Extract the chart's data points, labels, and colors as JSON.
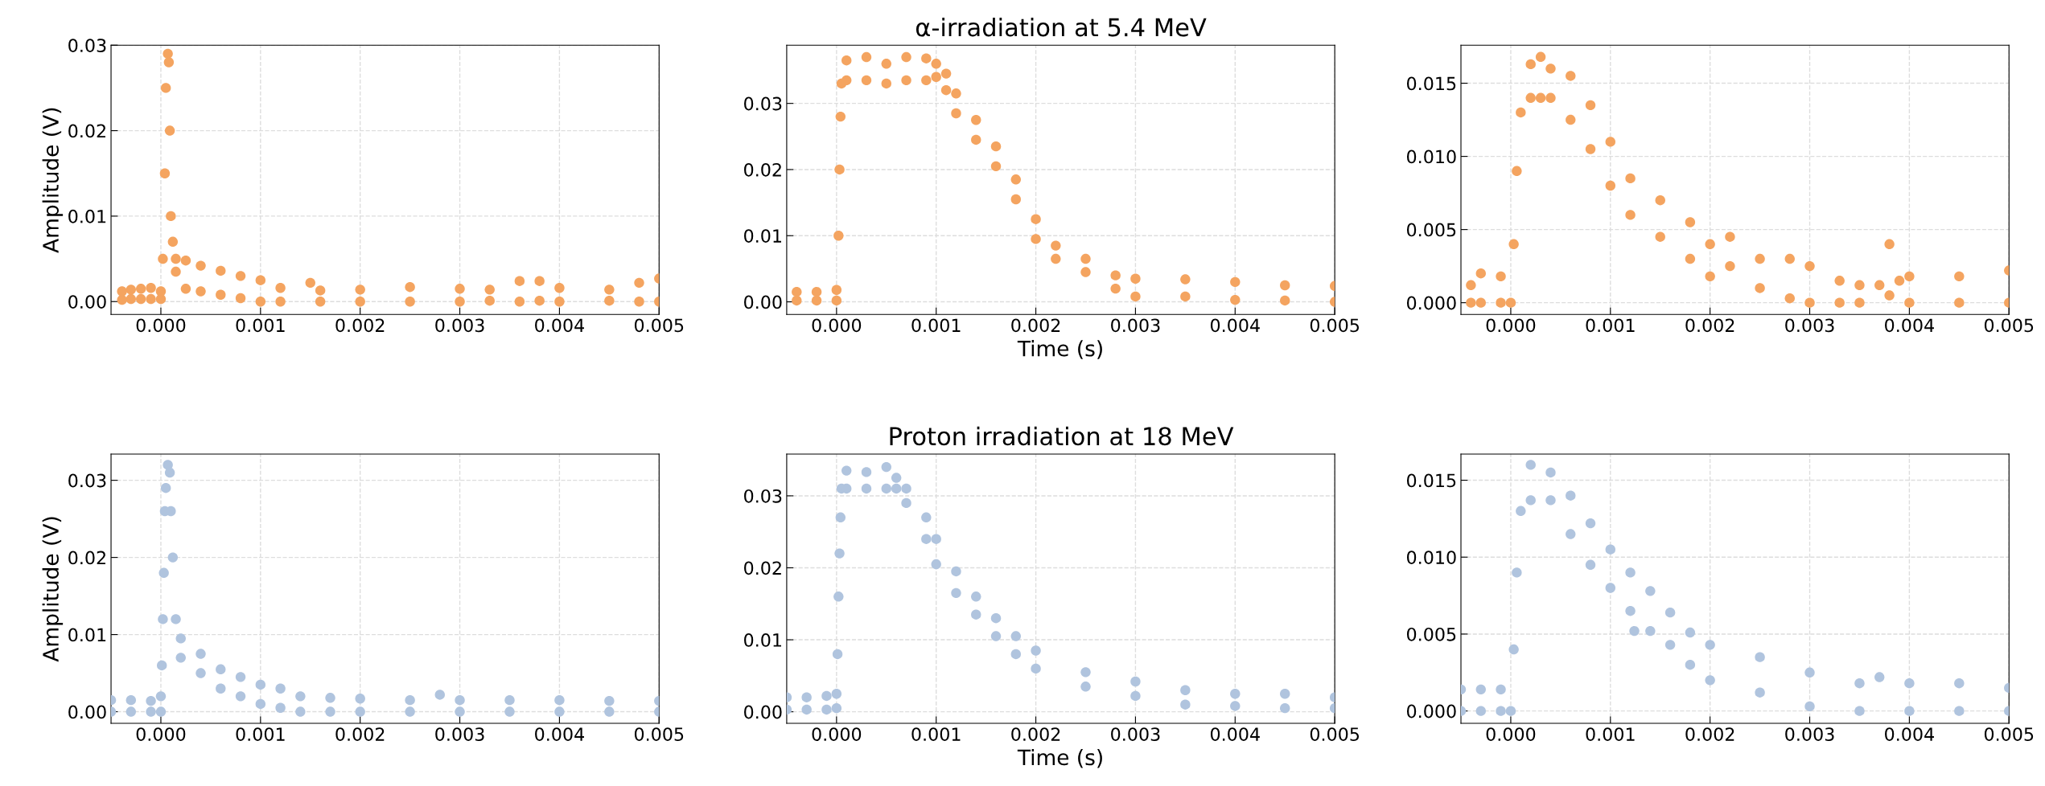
{
  "chart_data": [
    {
      "type": "scatter",
      "ylabel": "Amplitude (V)",
      "color": "#f4a460",
      "marker": "circle",
      "grid": true,
      "x": [
        -0.00039,
        -0.00039,
        -0.0003,
        -0.0003,
        -0.0002,
        -0.0002,
        -0.0001,
        -0.0001,
        0,
        0,
        2e-05,
        4e-05,
        5e-05,
        7e-05,
        8e-05,
        9e-05,
        0.0001,
        0.00012,
        0.00015,
        0.00015,
        0.00025,
        0.00025,
        0.0004,
        0.0004,
        0.0006,
        0.0006,
        0.0008,
        0.0008,
        0.001,
        0.001,
        0.0012,
        0.0012,
        0.0015,
        0.0016,
        0.0016,
        0.002,
        0.002,
        0.0025,
        0.0025,
        0.003,
        0.003,
        0.0033,
        0.0033,
        0.0036,
        0.0036,
        0.0038,
        0.0038,
        0.004,
        0.004,
        0.0045,
        0.0045,
        0.0048,
        0.0048,
        0.005,
        0.005
      ],
      "values": [
        0.0002,
        0.0012,
        0.0003,
        0.0014,
        0.0003,
        0.0015,
        0.0003,
        0.0016,
        0.0003,
        0.0012,
        0.005,
        0.015,
        0.025,
        0.029,
        0.028,
        0.02,
        0.01,
        0.007,
        0.0035,
        0.005,
        0.0015,
        0.0048,
        0.0012,
        0.0042,
        0.0008,
        0.0036,
        0.0004,
        0.003,
        0.0,
        0.0025,
        0.0,
        0.0016,
        0.0022,
        0.0,
        0.0013,
        0.0,
        0.0014,
        0.0,
        0.0017,
        0.0,
        0.0015,
        0.0001,
        0.0014,
        0.0,
        0.0024,
        0.0001,
        0.0024,
        0.0,
        0.0016,
        0.0001,
        0.0014,
        0.0,
        0.0022,
        0.0,
        0.0027
      ],
      "xlim": [
        -0.0005,
        0.005
      ],
      "ylim": [
        -0.0015,
        0.03
      ],
      "xticks": [
        {
          "value": 0,
          "label": "0.000"
        },
        {
          "value": 0.001,
          "label": "0.001"
        },
        {
          "value": 0.002,
          "label": "0.002"
        },
        {
          "value": 0.003,
          "label": "0.003"
        },
        {
          "value": 0.004,
          "label": "0.004"
        },
        {
          "value": 0.005,
          "label": "0.005"
        }
      ],
      "yticks": [
        {
          "value": 0,
          "label": "0.00"
        },
        {
          "value": 0.01,
          "label": "0.01"
        },
        {
          "value": 0.02,
          "label": "0.02"
        },
        {
          "value": 0.03,
          "label": "0.03"
        }
      ]
    },
    {
      "type": "scatter",
      "title": "α-irradiation at 5.4 MeV",
      "xlabel": "Time (s)",
      "color": "#f4a460",
      "marker": "circle",
      "grid": true,
      "x": [
        -0.0004,
        -0.0004,
        -0.0002,
        -0.0002,
        0,
        0,
        2e-05,
        3e-05,
        4e-05,
        5e-05,
        0.0001,
        0.0001,
        0.0003,
        0.0003,
        0.0005,
        0.0005,
        0.0007,
        0.0007,
        0.0009,
        0.0009,
        0.001,
        0.001,
        0.0011,
        0.0011,
        0.0012,
        0.0012,
        0.0014,
        0.0014,
        0.0016,
        0.0016,
        0.0018,
        0.0018,
        0.002,
        0.002,
        0.0022,
        0.0022,
        0.0025,
        0.0025,
        0.0028,
        0.0028,
        0.003,
        0.003,
        0.0035,
        0.0035,
        0.004,
        0.004,
        0.0045,
        0.0045,
        0.005,
        0.005
      ],
      "values": [
        0.0002,
        0.0015,
        0.0002,
        0.0015,
        0.0002,
        0.0018,
        0.01,
        0.02,
        0.028,
        0.033,
        0.0335,
        0.0365,
        0.0335,
        0.037,
        0.033,
        0.036,
        0.0335,
        0.037,
        0.0335,
        0.0368,
        0.034,
        0.036,
        0.032,
        0.0345,
        0.0285,
        0.0315,
        0.0245,
        0.0275,
        0.0205,
        0.0235,
        0.0155,
        0.0185,
        0.0095,
        0.0125,
        0.0065,
        0.0085,
        0.0045,
        0.0065,
        0.002,
        0.004,
        0.0008,
        0.0035,
        0.0008,
        0.0034,
        0.0003,
        0.003,
        0.0002,
        0.0025,
        0.0,
        0.0024
      ],
      "xlim": [
        -0.0005,
        0.005
      ],
      "ylim": [
        -0.0019,
        0.0388
      ],
      "xticks": [
        {
          "value": 0,
          "label": "0.000"
        },
        {
          "value": 0.001,
          "label": "0.001"
        },
        {
          "value": 0.002,
          "label": "0.002"
        },
        {
          "value": 0.003,
          "label": "0.003"
        },
        {
          "value": 0.004,
          "label": "0.004"
        },
        {
          "value": 0.005,
          "label": "0.005"
        }
      ],
      "yticks": [
        {
          "value": 0,
          "label": "0.00"
        },
        {
          "value": 0.01,
          "label": "0.01"
        },
        {
          "value": 0.02,
          "label": "0.02"
        },
        {
          "value": 0.03,
          "label": "0.03"
        }
      ]
    },
    {
      "type": "scatter",
      "color": "#f4a460",
      "marker": "circle",
      "grid": true,
      "x": [
        -0.0004,
        -0.0004,
        -0.0003,
        -0.0003,
        -0.0001,
        -0.0001,
        0,
        3e-05,
        6e-05,
        0.0001,
        0.0002,
        0.0002,
        0.0003,
        0.0003,
        0.0004,
        0.0004,
        0.0006,
        0.0006,
        0.0008,
        0.0008,
        0.001,
        0.001,
        0.0012,
        0.0012,
        0.0015,
        0.0015,
        0.0018,
        0.0018,
        0.002,
        0.002,
        0.0022,
        0.0022,
        0.0025,
        0.0025,
        0.0028,
        0.0028,
        0.003,
        0.003,
        0.0033,
        0.0033,
        0.0035,
        0.0035,
        0.0037,
        0.0038,
        0.0038,
        0.0039,
        0.004,
        0.004,
        0.0045,
        0.0045,
        0.005,
        0.005
      ],
      "values": [
        0.0,
        0.0012,
        0.0,
        0.002,
        0.0,
        0.0018,
        0.0,
        0.004,
        0.009,
        0.013,
        0.014,
        0.0163,
        0.014,
        0.0168,
        0.014,
        0.016,
        0.0125,
        0.0155,
        0.0105,
        0.0135,
        0.008,
        0.011,
        0.006,
        0.0085,
        0.0045,
        0.007,
        0.003,
        0.0055,
        0.0018,
        0.004,
        0.0025,
        0.0045,
        0.001,
        0.003,
        0.0003,
        0.003,
        0.0,
        0.0025,
        0.0,
        0.0015,
        0.0,
        0.0012,
        0.0012,
        0.0005,
        0.004,
        0.0015,
        0.0,
        0.0018,
        0.0,
        0.0018,
        0.0,
        0.0022
      ],
      "xlim": [
        -0.0005,
        0.005
      ],
      "ylim": [
        -0.0008,
        0.0176
      ],
      "xticks": [
        {
          "value": 0,
          "label": "0.000"
        },
        {
          "value": 0.001,
          "label": "0.001"
        },
        {
          "value": 0.002,
          "label": "0.002"
        },
        {
          "value": 0.003,
          "label": "0.003"
        },
        {
          "value": 0.004,
          "label": "0.004"
        },
        {
          "value": 0.005,
          "label": "0.005"
        }
      ],
      "yticks": [
        {
          "value": 0,
          "label": "0.000"
        },
        {
          "value": 0.005,
          "label": "0.005"
        },
        {
          "value": 0.01,
          "label": "0.010"
        },
        {
          "value": 0.015,
          "label": "0.015"
        }
      ]
    },
    {
      "type": "scatter",
      "ylabel": "Amplitude (V)",
      "color": "#b0c4de",
      "marker": "circle",
      "grid": true,
      "x": [
        -0.0005,
        -0.0005,
        -0.0003,
        -0.0003,
        -0.0001,
        -0.0001,
        0,
        0,
        1e-05,
        2e-05,
        3e-05,
        4e-05,
        5e-05,
        7e-05,
        9e-05,
        0.0001,
        0.00012,
        0.00015,
        0.0002,
        0.0002,
        0.0004,
        0.0004,
        0.0006,
        0.0006,
        0.0008,
        0.0008,
        0.001,
        0.001,
        0.0012,
        0.0012,
        0.0014,
        0.0014,
        0.0017,
        0.0017,
        0.002,
        0.002,
        0.0025,
        0.0025,
        0.0028,
        0.003,
        0.003,
        0.0035,
        0.0035,
        0.004,
        0.004,
        0.0045,
        0.0045,
        0.005,
        0.005
      ],
      "values": [
        0.0,
        0.0015,
        0.0,
        0.0015,
        0.0,
        0.0014,
        0.0,
        0.002,
        0.006,
        0.012,
        0.018,
        0.026,
        0.029,
        0.032,
        0.031,
        0.026,
        0.02,
        0.012,
        0.007,
        0.0095,
        0.005,
        0.0075,
        0.003,
        0.0055,
        0.002,
        0.0045,
        0.001,
        0.0035,
        0.0005,
        0.003,
        0.0,
        0.002,
        0.0,
        0.0018,
        0.0,
        0.0017,
        0.0,
        0.0015,
        0.0022,
        0.0,
        0.0015,
        0.0,
        0.0015,
        0.0,
        0.0015,
        0.0,
        0.0014,
        0.0,
        0.0014
      ],
      "xlim": [
        -0.0005,
        0.005
      ],
      "ylim": [
        -0.0015,
        0.0334
      ],
      "xticks": [
        {
          "value": 0,
          "label": "0.000"
        },
        {
          "value": 0.001,
          "label": "0.001"
        },
        {
          "value": 0.002,
          "label": "0.002"
        },
        {
          "value": 0.003,
          "label": "0.003"
        },
        {
          "value": 0.004,
          "label": "0.004"
        },
        {
          "value": 0.005,
          "label": "0.005"
        }
      ],
      "yticks": [
        {
          "value": 0,
          "label": "0.00"
        },
        {
          "value": 0.01,
          "label": "0.01"
        },
        {
          "value": 0.02,
          "label": "0.02"
        },
        {
          "value": 0.03,
          "label": "0.03"
        }
      ]
    },
    {
      "type": "scatter",
      "title": "Proton irradiation at 18 MeV",
      "xlabel": "Time (s)",
      "color": "#b0c4de",
      "marker": "circle",
      "grid": true,
      "x": [
        -0.0005,
        -0.0005,
        -0.0003,
        -0.0003,
        -0.0001,
        -0.0001,
        0,
        0,
        1e-05,
        2e-05,
        3e-05,
        4e-05,
        5e-05,
        0.0001,
        0.0001,
        0.0003,
        0.0003,
        0.0005,
        0.0005,
        0.0006,
        0.0006,
        0.0007,
        0.0007,
        0.0009,
        0.0009,
        0.001,
        0.001,
        0.0012,
        0.0012,
        0.0014,
        0.0014,
        0.0016,
        0.0016,
        0.0018,
        0.0018,
        0.002,
        0.002,
        0.0025,
        0.0025,
        0.003,
        0.003,
        0.0035,
        0.0035,
        0.004,
        0.004,
        0.0045,
        0.0045,
        0.005,
        0.005
      ],
      "values": [
        0.0003,
        0.002,
        0.0003,
        0.002,
        0.0003,
        0.0022,
        0.0005,
        0.0025,
        0.008,
        0.016,
        0.022,
        0.027,
        0.031,
        0.031,
        0.0335,
        0.031,
        0.0333,
        0.031,
        0.034,
        0.031,
        0.0325,
        0.029,
        0.031,
        0.024,
        0.027,
        0.0205,
        0.024,
        0.0165,
        0.0195,
        0.0135,
        0.016,
        0.0105,
        0.013,
        0.008,
        0.0105,
        0.006,
        0.0085,
        0.0035,
        0.0055,
        0.0022,
        0.0042,
        0.001,
        0.003,
        0.0008,
        0.0025,
        0.0005,
        0.0025,
        0.0005,
        0.002
      ],
      "xlim": [
        -0.0005,
        0.005
      ],
      "ylim": [
        -0.0016,
        0.0358
      ],
      "xticks": [
        {
          "value": 0,
          "label": "0.000"
        },
        {
          "value": 0.001,
          "label": "0.001"
        },
        {
          "value": 0.002,
          "label": "0.002"
        },
        {
          "value": 0.003,
          "label": "0.003"
        },
        {
          "value": 0.004,
          "label": "0.004"
        },
        {
          "value": 0.005,
          "label": "0.005"
        }
      ],
      "yticks": [
        {
          "value": 0,
          "label": "0.00"
        },
        {
          "value": 0.01,
          "label": "0.01"
        },
        {
          "value": 0.02,
          "label": "0.02"
        },
        {
          "value": 0.03,
          "label": "0.03"
        }
      ]
    },
    {
      "type": "scatter",
      "color": "#b0c4de",
      "marker": "circle",
      "grid": true,
      "x": [
        -0.0005,
        -0.0005,
        -0.0003,
        -0.0003,
        -0.0001,
        -0.0001,
        0,
        3e-05,
        6e-05,
        0.0001,
        0.0002,
        0.0002,
        0.0004,
        0.0004,
        0.0006,
        0.0006,
        0.0008,
        0.0008,
        0.001,
        0.001,
        0.0012,
        0.0012,
        0.00124,
        0.0014,
        0.0014,
        0.0016,
        0.0016,
        0.0018,
        0.0018,
        0.002,
        0.002,
        0.0025,
        0.0025,
        0.003,
        0.003,
        0.0035,
        0.0035,
        0.0037,
        0.004,
        0.004,
        0.0045,
        0.0045,
        0.005,
        0.005
      ],
      "values": [
        0.0,
        0.0014,
        0.0,
        0.0014,
        0.0,
        0.0014,
        0.0,
        0.004,
        0.009,
        0.013,
        0.0137,
        0.016,
        0.0137,
        0.0155,
        0.0115,
        0.014,
        0.0095,
        0.0122,
        0.008,
        0.0105,
        0.0065,
        0.009,
        0.0052,
        0.0052,
        0.0078,
        0.0043,
        0.0064,
        0.003,
        0.0051,
        0.002,
        0.0043,
        0.0012,
        0.0035,
        0.0003,
        0.0025,
        0.0,
        0.0018,
        0.0022,
        0.0,
        0.0018,
        0.0,
        0.0018,
        0.0,
        0.0015
      ],
      "xlim": [
        -0.0005,
        0.005
      ],
      "ylim": [
        -0.0008,
        0.0167
      ],
      "xticks": [
        {
          "value": 0,
          "label": "0.000"
        },
        {
          "value": 0.001,
          "label": "0.001"
        },
        {
          "value": 0.002,
          "label": "0.002"
        },
        {
          "value": 0.003,
          "label": "0.003"
        },
        {
          "value": 0.004,
          "label": "0.004"
        },
        {
          "value": 0.005,
          "label": "0.005"
        }
      ],
      "yticks": [
        {
          "value": 0,
          "label": "0.000"
        },
        {
          "value": 0.005,
          "label": "0.005"
        },
        {
          "value": 0.01,
          "label": "0.010"
        },
        {
          "value": 0.015,
          "label": "0.015"
        }
      ]
    }
  ]
}
